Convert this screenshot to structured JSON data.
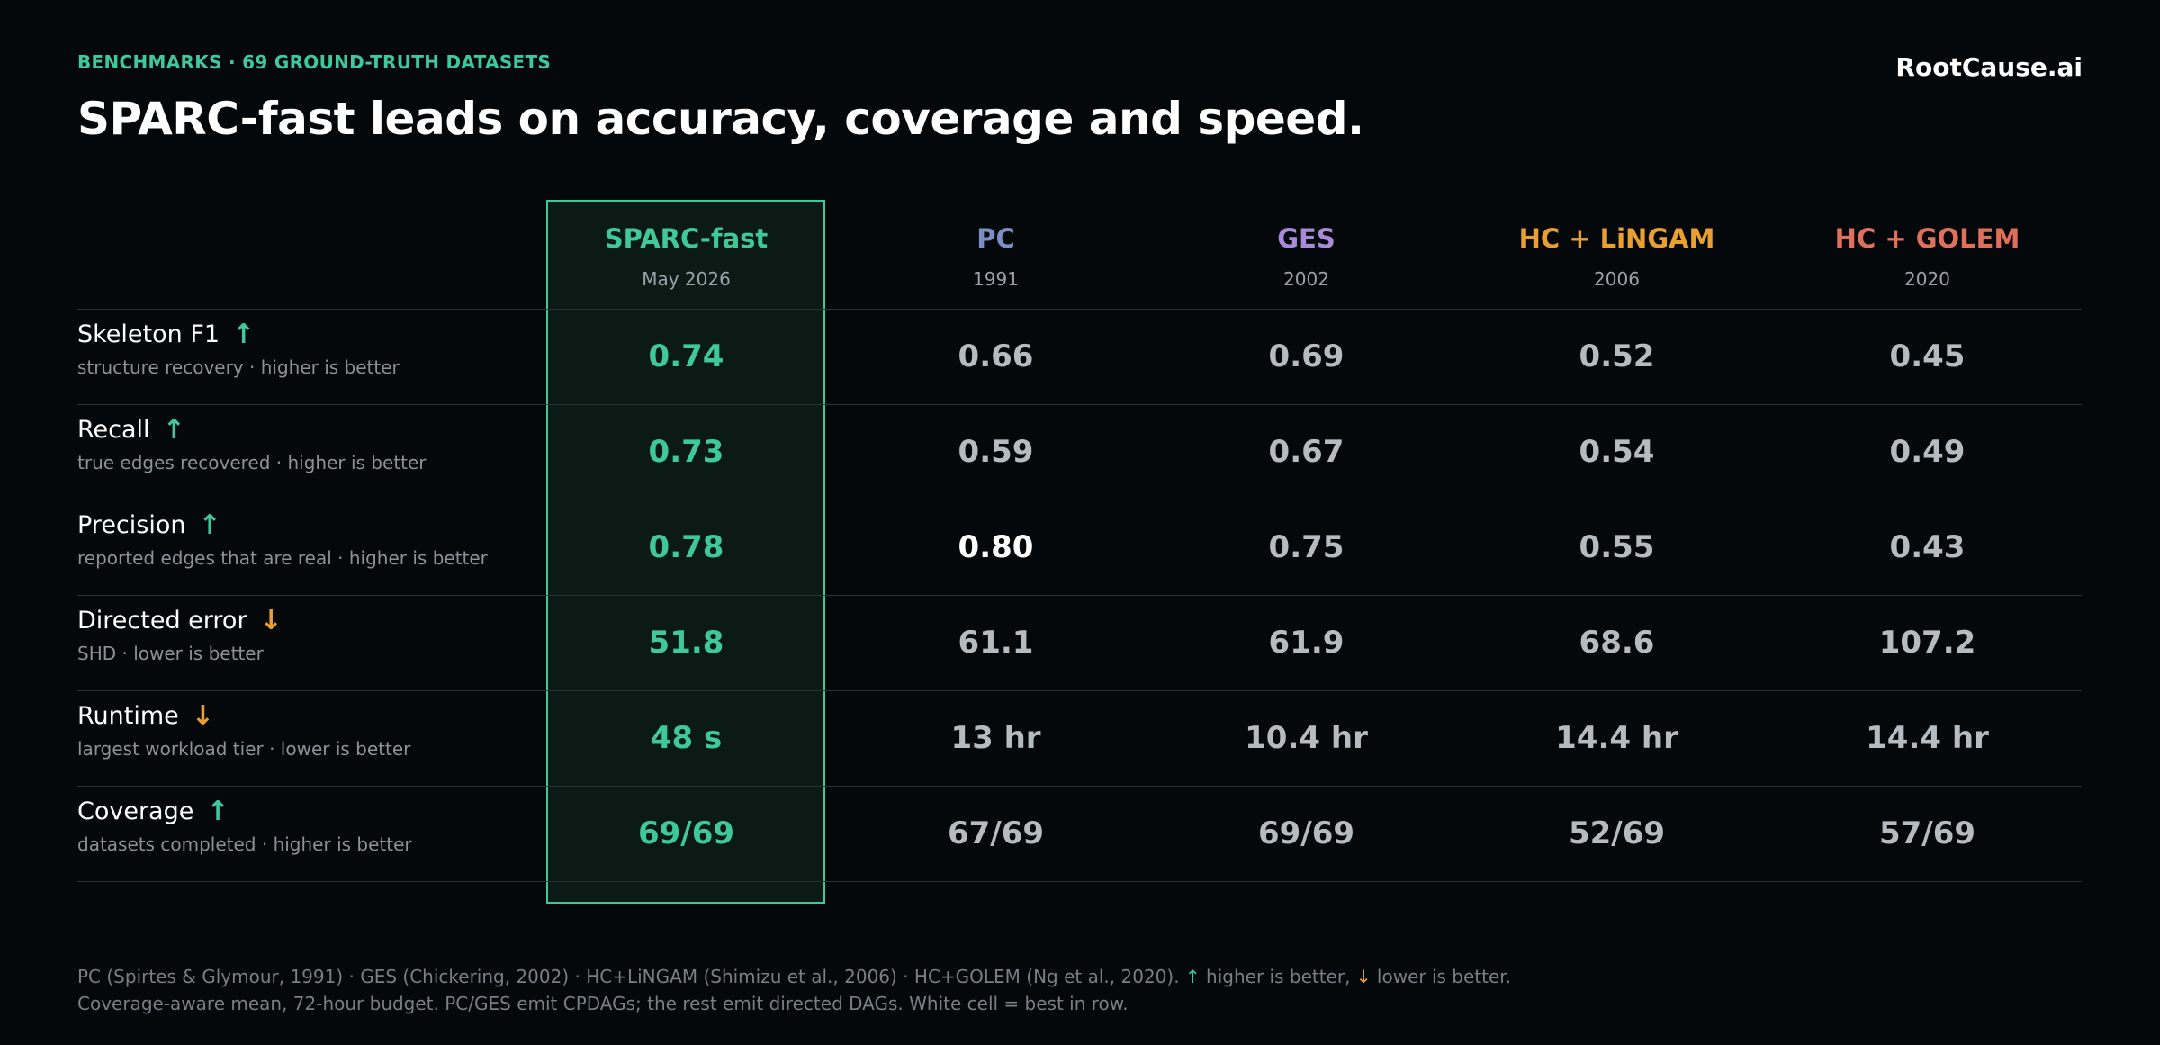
{
  "header": {
    "eyebrow": "BENCHMARKS · 69 GROUND-TRUTH DATASETS",
    "title": "SPARC-fast leads on accuracy, coverage and speed.",
    "brand": "RootCause.ai"
  },
  "columns": [
    {
      "name": "SPARC-fast",
      "year": "May 2026",
      "color": "#3fc99a"
    },
    {
      "name": "PC",
      "year": "1991",
      "color": "#7b8fc7"
    },
    {
      "name": "GES",
      "year": "2002",
      "color": "#a78bd8"
    },
    {
      "name": "HC + LiNGAM",
      "year": "2006",
      "color": "#e9a030"
    },
    {
      "name": "HC + GOLEM",
      "year": "2020",
      "color": "#e0705a"
    }
  ],
  "rows": [
    {
      "name": "Skeleton F1",
      "arrow": "↑",
      "direction": "up",
      "sub": "structure recovery · higher is better",
      "values": [
        "0.74",
        "0.66",
        "0.69",
        "0.52",
        "0.45"
      ],
      "best_index": 0
    },
    {
      "name": "Recall",
      "arrow": "↑",
      "direction": "up",
      "sub": "true edges recovered · higher is better",
      "values": [
        "0.73",
        "0.59",
        "0.67",
        "0.54",
        "0.49"
      ],
      "best_index": 0
    },
    {
      "name": "Precision",
      "arrow": "↑",
      "direction": "up",
      "sub": "reported edges that are real · higher is better",
      "values": [
        "0.78",
        "0.80",
        "0.75",
        "0.55",
        "0.43"
      ],
      "best_index": 1
    },
    {
      "name": "Directed error",
      "arrow": "↓",
      "direction": "down",
      "sub": "SHD · lower is better",
      "values": [
        "51.8",
        "61.1",
        "61.9",
        "68.6",
        "107.2"
      ],
      "best_index": 0
    },
    {
      "name": "Runtime",
      "arrow": "↓",
      "direction": "down",
      "sub": "largest workload tier · lower is better",
      "values": [
        "48 s",
        "13 hr",
        "10.4 hr",
        "14.4 hr",
        "14.4 hr"
      ],
      "best_index": 0
    },
    {
      "name": "Coverage",
      "arrow": "↑",
      "direction": "up",
      "sub": "datasets completed · higher is better",
      "values": [
        "69/69",
        "67/69",
        "69/69",
        "52/69",
        "57/69"
      ],
      "best_index": 0
    }
  ],
  "footnote": {
    "line1_text": "PC (Spirtes & Glymour, 1991) · GES (Chickering, 2002) · HC+LiNGAM (Shimizu et al., 2006) · HC+GOLEM (Ng et al., 2020).",
    "up_arrow": "↑",
    "higher_text": "higher is better,",
    "down_arrow": "↓",
    "lower_text": "lower is better.",
    "line2": "Coverage-aware mean, 72-hour budget. PC/GES emit CPDAGs; the rest emit directed DAGs. White cell = best in row."
  }
}
